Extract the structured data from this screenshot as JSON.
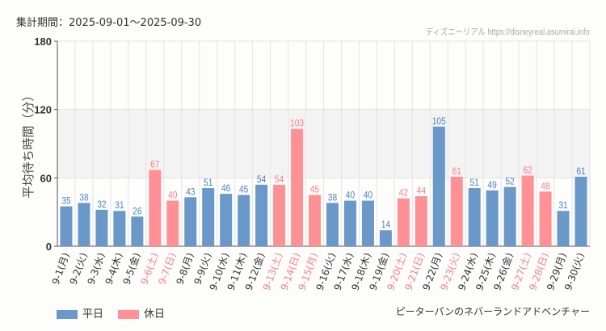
{
  "header": {
    "period": "集計期間：2025-09-01～2025-09-30",
    "credit": "ディズニーリアル https://disneyreal.asumirai.info"
  },
  "footer": {
    "attraction": "ピーターパンのネバーランドアドベンチャー"
  },
  "chart_data": {
    "type": "bar",
    "title": "",
    "ylabel": "平均待ち時間（分）",
    "xlabel": "",
    "ylim": [
      0,
      180
    ],
    "yticks": [
      "0",
      "60",
      "120",
      "180"
    ],
    "colors": {
      "weekday": "#6a98c8",
      "holiday": "#ff9196",
      "holiday_label": "#ff7c84",
      "weekday_label": "#4f82bd"
    },
    "legend": [
      {
        "name": "平日",
        "key": "weekday"
      },
      {
        "name": "休日",
        "key": "holiday"
      }
    ],
    "legend_position": "bottom-left",
    "categories": [
      "9-1(月)",
      "9-2(火)",
      "9-3(水)",
      "9-4(木)",
      "9-5(金)",
      "9-6(土)",
      "9-7(日)",
      "9-8(月)",
      "9-9(火)",
      "9-10(水)",
      "9-11(木)",
      "9-12(金)",
      "9-13(土)",
      "9-14(日)",
      "9-15(月)",
      "9-16(火)",
      "9-17(水)",
      "9-18(木)",
      "9-19(金)",
      "9-20(土)",
      "9-21(日)",
      "9-22(月)",
      "9-23(火)",
      "9-24(水)",
      "9-25(木)",
      "9-26(金)",
      "9-27(土)",
      "9-28(日)",
      "9-29(月)",
      "9-30(火)"
    ],
    "values": [
      35,
      38,
      32,
      31,
      26,
      67,
      40,
      43,
      51,
      46,
      45,
      54,
      54,
      103,
      45,
      38,
      40,
      40,
      14,
      42,
      44,
      105,
      61,
      51,
      49,
      52,
      62,
      48,
      31,
      61
    ],
    "holiday": [
      false,
      false,
      false,
      false,
      false,
      true,
      true,
      false,
      false,
      false,
      false,
      false,
      true,
      true,
      true,
      false,
      false,
      false,
      false,
      true,
      true,
      false,
      true,
      false,
      false,
      false,
      true,
      true,
      false,
      false
    ]
  }
}
